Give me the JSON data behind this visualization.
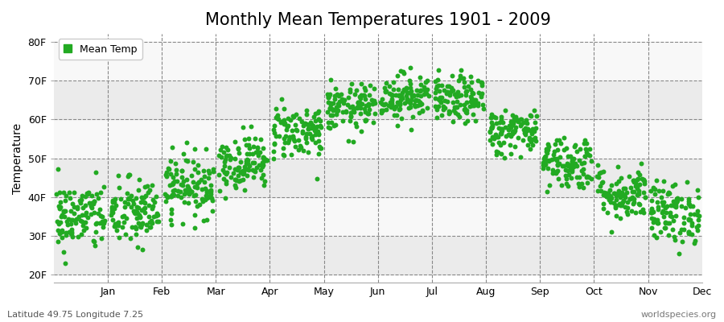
{
  "title": "Monthly Mean Temperatures 1901 - 2009",
  "ylabel": "Temperature",
  "xlabel_bottom_left": "Latitude 49.75 Longitude 7.25",
  "xlabel_bottom_right": "worldspecies.org",
  "legend_label": "Mean Temp",
  "marker_color": "#22aa22",
  "background_color": "#ffffff",
  "plot_bg_color": "#ffffff",
  "ytick_labels": [
    "20F",
    "30F",
    "40F",
    "50F",
    "60F",
    "70F",
    "80F"
  ],
  "ytick_values": [
    20,
    30,
    40,
    50,
    60,
    70,
    80
  ],
  "ylim": [
    18,
    82
  ],
  "months": [
    "Jan",
    "Feb",
    "Mar",
    "Apr",
    "May",
    "Jun",
    "Jul",
    "Aug",
    "Sep",
    "Oct",
    "Nov",
    "Dec"
  ],
  "month_means_F": [
    35,
    36,
    43,
    49,
    57,
    63,
    66,
    65,
    57,
    49,
    41,
    36
  ],
  "month_stds_F": [
    4.5,
    4.5,
    4,
    3.5,
    3.5,
    3,
    3,
    3,
    3,
    3.5,
    3.5,
    4
  ],
  "n_points": 109,
  "seed": 42,
  "figsize": [
    9.0,
    4.0
  ],
  "dpi": 100,
  "title_fontsize": 15,
  "axis_label_fontsize": 10,
  "tick_fontsize": 9,
  "legend_fontsize": 9,
  "marker_size": 5,
  "grid_color": "#888888",
  "grid_linestyle": "--",
  "grid_linewidth": 0.8,
  "h_stripe_colors": [
    "#ebebeb",
    "#f8f8f8"
  ],
  "n_months": 12,
  "xlim_left": 0,
  "xlim_right": 12
}
